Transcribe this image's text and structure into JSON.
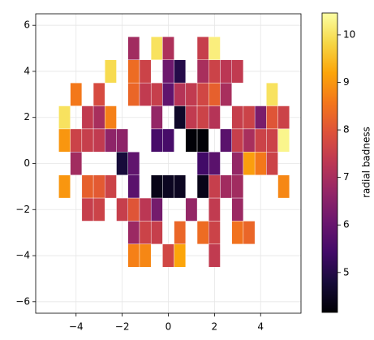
{
  "chart_data": {
    "type": "heatmap",
    "colormap": "inferno",
    "grid": true,
    "colorbar_label": "radial badness",
    "xlim": [
      -5.75,
      5.75
    ],
    "ylim": [
      -6.5,
      6.5
    ],
    "xticks": [
      {
        "value": -4,
        "label": "−4"
      },
      {
        "value": -2,
        "label": "−2"
      },
      0,
      2,
      4
    ],
    "yticks": [
      {
        "value": -6,
        "label": "−6"
      },
      {
        "value": -4,
        "label": "−4"
      },
      {
        "value": -2,
        "label": "−2"
      },
      0,
      2,
      4,
      6
    ],
    "clim": [
      4.16,
      10.46
    ],
    "cticks": [
      5,
      6,
      7,
      8,
      9,
      10
    ],
    "x": [
      -4.5,
      -4,
      -3.5,
      -3,
      -2.5,
      -2,
      -1.5,
      -1,
      -0.5,
      0,
      0.5,
      1,
      1.5,
      2,
      2.5,
      3,
      3.5,
      4,
      4.5,
      5
    ],
    "y": [
      5,
      4,
      3,
      2,
      1,
      0,
      -1,
      -2,
      -3,
      -4
    ],
    "z": [
      [
        null,
        null,
        null,
        null,
        null,
        null,
        6.9,
        null,
        10.0,
        7.1,
        null,
        null,
        7.5,
        10.2,
        null,
        null,
        null,
        null,
        null,
        null
      ],
      [
        null,
        null,
        null,
        null,
        9.9,
        null,
        8.4,
        7.6,
        null,
        6.1,
        5.0,
        null,
        7.0,
        7.6,
        7.3,
        7.4,
        null,
        null,
        null,
        null
      ],
      [
        null,
        8.6,
        null,
        7.8,
        null,
        null,
        8.3,
        7.4,
        7.5,
        5.9,
        7.2,
        7.4,
        7.7,
        8.2,
        7.0,
        null,
        null,
        null,
        10.0,
        null
      ],
      [
        10.0,
        null,
        7.4,
        7.0,
        8.7,
        null,
        null,
        null,
        6.7,
        null,
        4.6,
        7.4,
        7.6,
        7.2,
        null,
        7.5,
        7.6,
        6.3,
        8.0,
        7.6
      ],
      [
        9.0,
        7.6,
        7.5,
        7.4,
        6.6,
        6.6,
        null,
        null,
        5.5,
        5.5,
        null,
        4.2,
        4.2,
        null,
        5.8,
        7.5,
        7.0,
        7.6,
        7.6,
        10.3
      ],
      [
        null,
        6.9,
        null,
        null,
        null,
        4.8,
        5.9,
        null,
        null,
        null,
        null,
        null,
        5.4,
        5.8,
        null,
        6.7,
        9.1,
        8.6,
        7.6,
        null
      ],
      [
        9.0,
        null,
        8.2,
        8.1,
        7.6,
        null,
        5.8,
        null,
        4.4,
        4.5,
        4.5,
        null,
        4.4,
        7.5,
        6.9,
        6.9,
        null,
        null,
        null,
        8.8
      ],
      [
        null,
        null,
        7.5,
        7.6,
        null,
        7.5,
        8.0,
        7.3,
        6.2,
        null,
        null,
        6.7,
        null,
        7.4,
        null,
        6.8,
        null,
        null,
        null,
        null
      ],
      [
        null,
        null,
        null,
        null,
        null,
        null,
        6.8,
        7.6,
        7.5,
        null,
        8.3,
        null,
        8.4,
        7.6,
        null,
        8.5,
        8.3,
        null,
        null,
        null
      ],
      [
        null,
        null,
        null,
        null,
        null,
        null,
        8.7,
        8.8,
        null,
        7.7,
        9.2,
        null,
        null,
        7.4,
        null,
        null,
        null,
        null,
        null,
        null
      ]
    ]
  }
}
